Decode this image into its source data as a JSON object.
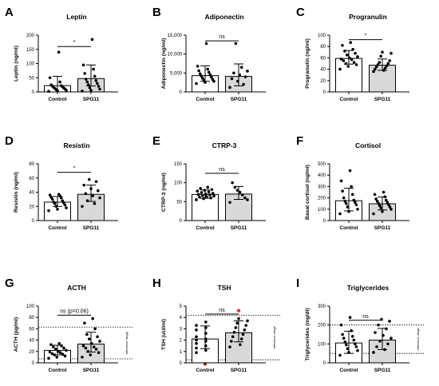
{
  "chart_data": [
    {
      "letter": "A",
      "title": "Leptin",
      "ylabel": "Leptin (ng/ml)",
      "type": "bar",
      "ylim": [
        0,
        200
      ],
      "yticks": [
        0,
        50,
        100,
        150,
        200
      ],
      "tick_labels": [
        "0",
        "50",
        "100",
        "150",
        "200"
      ],
      "categories": [
        "Control",
        "SPG11"
      ],
      "values": [
        22,
        47
      ],
      "error": [
        33,
        48
      ],
      "error_low": [
        22,
        26
      ],
      "points": [
        [
          2,
          4,
          6,
          8,
          10,
          12,
          14,
          16,
          18,
          20,
          22,
          25,
          35,
          50,
          140
        ],
        [
          3,
          6,
          10,
          15,
          20,
          25,
          30,
          35,
          40,
          45,
          55,
          65,
          80,
          95,
          185
        ]
      ],
      "significance": "*",
      "sig_y": 160
    },
    {
      "letter": "B",
      "title": "Adiponectin",
      "ylabel": "Adiponectin (ng/ml)",
      "type": "bar",
      "ylim": [
        0,
        15000
      ],
      "yticks": [
        0,
        5000,
        10000,
        15000
      ],
      "tick_labels": [
        "0",
        "5,000",
        "10,000",
        "15,000"
      ],
      "categories": [
        "Control",
        "SPG11"
      ],
      "values": [
        4300,
        4100
      ],
      "error": [
        2600,
        3300
      ],
      "error_low": [
        1500,
        2500
      ],
      "points": [
        [
          2200,
          2500,
          2800,
          3000,
          3300,
          3600,
          3900,
          4200,
          4500,
          4800,
          5200,
          5600,
          6000,
          6800,
          12800
        ],
        [
          1200,
          2000,
          2800,
          3500,
          4000,
          4500,
          5000,
          5500,
          6500,
          12800
        ]
      ],
      "significance": "ns",
      "sig_y": 13500
    },
    {
      "letter": "C",
      "title": "Progranulin",
      "ylabel": "Progranulin (ng/ml)",
      "type": "bar",
      "ylim": [
        0,
        100
      ],
      "yticks": [
        0,
        20,
        40,
        60,
        80,
        100
      ],
      "tick_labels": [
        "0",
        "20",
        "40",
        "60",
        "80",
        "100"
      ],
      "categories": [
        "Control",
        "SPG11"
      ],
      "values": [
        59,
        47
      ],
      "error": [
        14,
        11
      ],
      "error_low": [
        10,
        9
      ],
      "points": [
        [
          40,
          45,
          48,
          50,
          52,
          55,
          57,
          58,
          60,
          62,
          65,
          68,
          72,
          75,
          82,
          87
        ],
        [
          36,
          38,
          40,
          42,
          44,
          46,
          48,
          50,
          52,
          55,
          63,
          68,
          70
        ]
      ],
      "significance": "*",
      "sig_y": 92
    },
    {
      "letter": "D",
      "title": "Resistin",
      "ylabel": "Resistin (ng/ml)",
      "type": "bar",
      "ylim": [
        0,
        80
      ],
      "yticks": [
        0,
        20,
        40,
        60,
        80
      ],
      "tick_labels": [
        "0",
        "20",
        "40",
        "60",
        "80"
      ],
      "categories": [
        "Control",
        "SPG11"
      ],
      "values": [
        26,
        37
      ],
      "error": [
        8,
        13
      ],
      "error_low": [
        6,
        10
      ],
      "points": [
        [
          14,
          16,
          18,
          20,
          22,
          24,
          25,
          26,
          28,
          30,
          32,
          33,
          35,
          36,
          37
        ],
        [
          20,
          24,
          28,
          32,
          35,
          38,
          42,
          45,
          50,
          55,
          58
        ]
      ],
      "significance": "*",
      "sig_y": 68
    },
    {
      "letter": "E",
      "title": "CTRP-3",
      "ylabel": "CTRP-3 (ng/ml)",
      "type": "bar",
      "ylim": [
        0,
        150
      ],
      "yticks": [
        0,
        50,
        100,
        150
      ],
      "tick_labels": [
        "0",
        "50",
        "100",
        "150"
      ],
      "categories": [
        "Control",
        "SPG11"
      ],
      "values": [
        69,
        70
      ],
      "error": [
        12,
        20
      ],
      "error_low": [
        10,
        14
      ],
      "points": [
        [
          55,
          58,
          60,
          62,
          63,
          65,
          66,
          68,
          69,
          70,
          72,
          74,
          76,
          78,
          80,
          82,
          85,
          88
        ],
        [
          48,
          55,
          60,
          68,
          75,
          80,
          88,
          100
        ]
      ],
      "significance": "ns",
      "sig_y": 125
    },
    {
      "letter": "F",
      "title": "Cortisol",
      "ylabel": "Basal cortisol (ng/ml)",
      "type": "bar",
      "ylim": [
        0,
        500
      ],
      "yticks": [
        0,
        100,
        200,
        300,
        400,
        500
      ],
      "tick_labels": [
        "0",
        "100",
        "200",
        "300",
        "400",
        "500"
      ],
      "categories": [
        "Control",
        "SPG11"
      ],
      "values": [
        175,
        148
      ],
      "error": [
        110,
        60
      ],
      "error_low": [
        90,
        55
      ],
      "points": [
        [
          60,
          80,
          100,
          120,
          140,
          150,
          160,
          170,
          180,
          200,
          230,
          260,
          300,
          350,
          440
        ],
        [
          60,
          80,
          100,
          110,
          120,
          130,
          140,
          150,
          160,
          170,
          180,
          190,
          210,
          230,
          250
        ]
      ],
      "significance": "",
      "sig_y": 0
    },
    {
      "letter": "G",
      "title": "ACTH",
      "ylabel": "ACTH (pg/ml)",
      "type": "bar",
      "ylim": [
        0,
        100
      ],
      "yticks": [
        0,
        20,
        40,
        60,
        80,
        100
      ],
      "tick_labels": [
        "0",
        "20",
        "40",
        "60",
        "80",
        "100"
      ],
      "categories": [
        "Control",
        "SPG11"
      ],
      "values": [
        22,
        33
      ],
      "error": [
        9,
        21
      ],
      "error_low": [
        8,
        14
      ],
      "points": [
        [
          8,
          10,
          12,
          14,
          15,
          16,
          18,
          19,
          20,
          22,
          24,
          26,
          28,
          30,
          32,
          34
        ],
        [
          10,
          14,
          18,
          20,
          24,
          26,
          28,
          30,
          34,
          38,
          42,
          46,
          50,
          60,
          70,
          78
        ]
      ],
      "significance": "ns (p=0.06)",
      "sig_y": 84,
      "reference_lines": [
        7,
        63
      ],
      "reference_label": "reference range"
    },
    {
      "letter": "H",
      "title": "TSH",
      "ylabel": "TSH (uU/ml)",
      "type": "bar",
      "ylim": [
        0,
        5
      ],
      "yticks": [
        0,
        1,
        2,
        3,
        4,
        5
      ],
      "tick_labels": [
        "0",
        "1",
        "2",
        "3",
        "4",
        "5"
      ],
      "categories": [
        "Control",
        "SPG11"
      ],
      "values": [
        2.1,
        2.65
      ],
      "error": [
        1.15,
        1.05
      ],
      "error_low": [
        0.85,
        0.8
      ],
      "points": [
        [
          0.9,
          1.1,
          1.3,
          1.5,
          1.7,
          1.9,
          2.0,
          2.1,
          2.3,
          2.6,
          2.9,
          3.1,
          3.3,
          3.6
        ],
        [
          1.4,
          1.6,
          1.9,
          2.1,
          2.3,
          2.5,
          2.7,
          2.9,
          3.1,
          3.3,
          3.5,
          3.7,
          3.9
        ]
      ],
      "outliers": [
        [
          0,
          -0.1
        ],
        [
          1,
          4.6
        ]
      ],
      "outlier_color": "#e03030",
      "significance": "ns",
      "sig_y": 4.3,
      "reference_lines": [
        0.27,
        4.2
      ],
      "reference_label": "reference range"
    },
    {
      "letter": "I",
      "title": "Triglycerides",
      "ylabel": "Triglycerides (mg/dl)",
      "type": "bar",
      "ylim": [
        0,
        300
      ],
      "yticks": [
        0,
        100,
        200,
        300
      ],
      "tick_labels": [
        "0",
        "100",
        "200",
        "300"
      ],
      "categories": [
        "Control",
        "SPG11"
      ],
      "values": [
        105,
        120
      ],
      "error": [
        62,
        62
      ],
      "error_low": [
        55,
        50
      ],
      "points": [
        [
          40,
          55,
          65,
          75,
          85,
          95,
          100,
          110,
          120,
          130,
          140,
          150,
          170,
          200,
          240
        ],
        [
          55,
          70,
          85,
          100,
          115,
          130,
          145,
          160,
          180,
          200,
          220,
          230
        ]
      ],
      "significance": "ns",
      "sig_y": 225,
      "reference_lines": [
        50,
        200
      ],
      "reference_label": "reference range"
    }
  ],
  "colors": {
    "control_fill": "#ffffff",
    "spg11_fill": "#d9d9d9",
    "stroke": "#000000",
    "dot": "#000000"
  }
}
